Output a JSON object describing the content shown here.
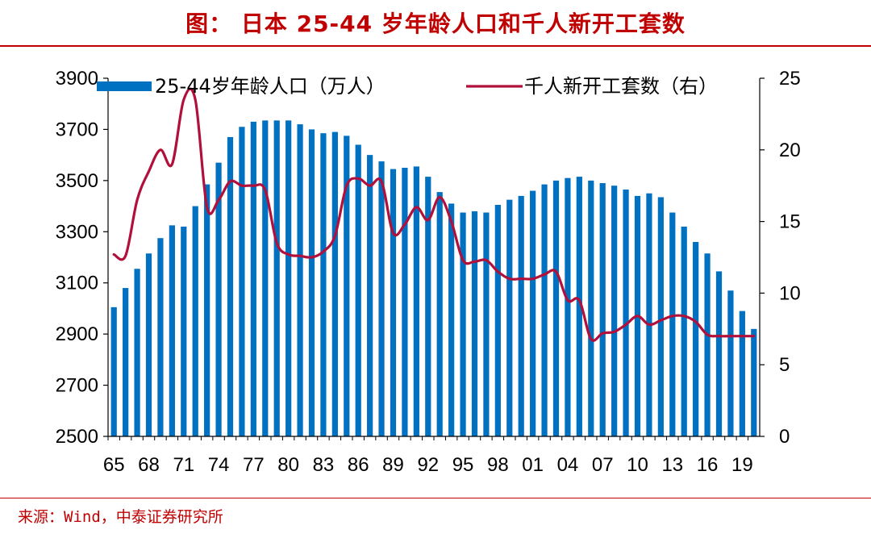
{
  "title": "图： 日本 25-44 岁年龄人口和千人新开工套数",
  "source": "来源：Wind，中泰证券研究所",
  "colors": {
    "bar": "#0070c0",
    "line": "#b0103a",
    "accent": "#c00000"
  },
  "chart_data": {
    "type": "bar+line",
    "title": "日本 25-44 岁年龄人口和千人新开工套数",
    "categories": [
      "65",
      "66",
      "67",
      "68",
      "69",
      "70",
      "71",
      "72",
      "73",
      "74",
      "75",
      "76",
      "77",
      "78",
      "79",
      "80",
      "81",
      "82",
      "83",
      "84",
      "85",
      "86",
      "87",
      "88",
      "89",
      "90",
      "91",
      "92",
      "93",
      "94",
      "95",
      "96",
      "97",
      "98",
      "99",
      "00",
      "01",
      "02",
      "03",
      "04",
      "05",
      "06",
      "07",
      "08",
      "09",
      "10",
      "11",
      "12",
      "13",
      "14",
      "15",
      "16",
      "17",
      "18",
      "19",
      "20"
    ],
    "x_tick_labels": [
      "65",
      "68",
      "71",
      "74",
      "77",
      "80",
      "83",
      "86",
      "89",
      "92",
      "95",
      "98",
      "01",
      "04",
      "07",
      "10",
      "13",
      "16",
      "19"
    ],
    "y_left": {
      "min": 2500,
      "max": 3900,
      "ticks": [
        2500,
        2700,
        2900,
        3100,
        3300,
        3500,
        3700,
        3900
      ]
    },
    "y_right": {
      "min": 0,
      "max": 25,
      "ticks": [
        0,
        5,
        10,
        15,
        20,
        25
      ]
    },
    "series": [
      {
        "name": "25-44岁年龄人口（万人）",
        "type": "bar",
        "axis": "left",
        "values": [
          3005,
          3080,
          3155,
          3215,
          3275,
          3325,
          3320,
          3400,
          3485,
          3570,
          3670,
          3710,
          3730,
          3735,
          3735,
          3735,
          3720,
          3700,
          3685,
          3690,
          3675,
          3640,
          3600,
          3575,
          3545,
          3550,
          3555,
          3515,
          3455,
          3410,
          3375,
          3380,
          3375,
          3405,
          3425,
          3440,
          3460,
          3485,
          3500,
          3510,
          3515,
          3500,
          3490,
          3480,
          3465,
          3440,
          3450,
          3435,
          3375,
          3320,
          3260,
          3215,
          3145,
          3070,
          2990,
          2920
        ]
      },
      {
        "name": "千人新开工套数（右）",
        "type": "line",
        "axis": "right",
        "values": [
          12.7,
          12.6,
          16.5,
          18.5,
          20.0,
          19.0,
          23.5,
          23.5,
          16.0,
          16.5,
          17.8,
          17.5,
          17.5,
          17.2,
          13.5,
          12.7,
          12.6,
          12.5,
          12.9,
          14.0,
          17.5,
          18.0,
          17.5,
          17.8,
          14.2,
          14.8,
          16.0,
          15.1,
          16.7,
          15.0,
          12.3,
          12.2,
          12.3,
          11.5,
          11.0,
          11.0,
          11.0,
          11.3,
          11.5,
          9.5,
          9.5,
          6.8,
          7.2,
          7.3,
          7.8,
          8.4,
          7.8,
          8.1,
          8.4,
          8.4,
          8.0,
          7.1,
          7.0,
          7.0,
          7.0,
          7.0
        ]
      }
    ],
    "legend": [
      "25-44岁年龄人口（万人）",
      "千人新开工套数（右）"
    ],
    "legend_position": "top"
  }
}
